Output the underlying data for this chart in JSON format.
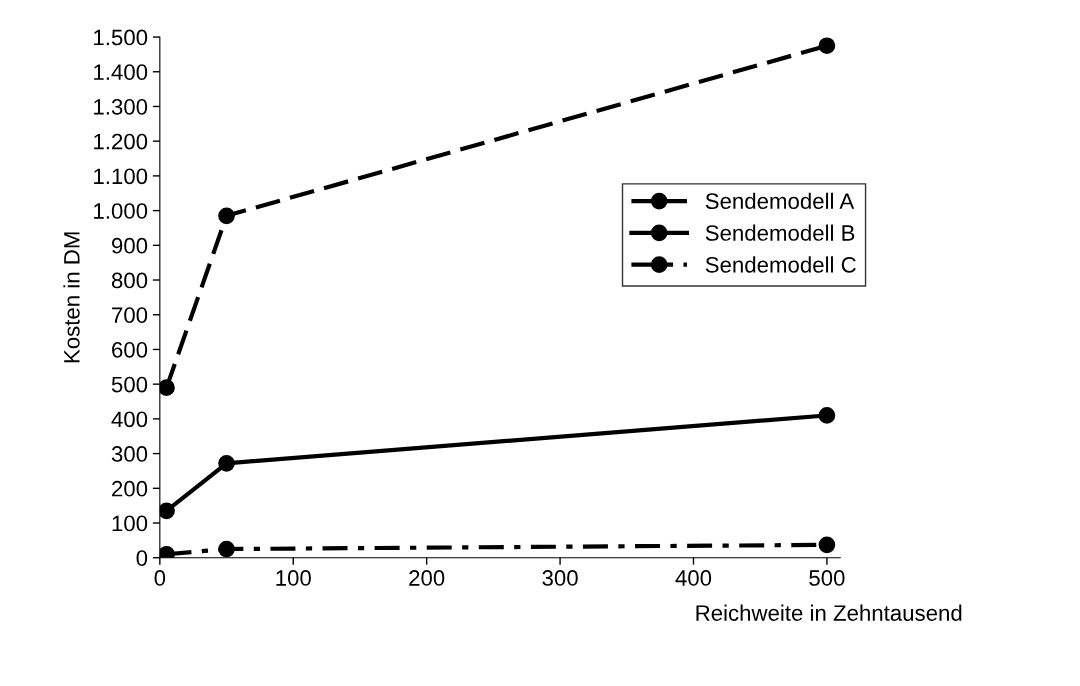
{
  "chart_data": {
    "type": "line",
    "xlabel": "Reichweite in Zehntausend",
    "ylabel": "Kosten in DM",
    "x": [
      5,
      50,
      500
    ],
    "series": [
      {
        "name": "Sendemodell A",
        "color": "#000000",
        "line_style": "dashed",
        "values": [
          490,
          985,
          1475
        ]
      },
      {
        "name": "Sendemodell B",
        "color": "#000000",
        "line_style": "solid",
        "values": [
          135,
          272,
          410
        ]
      },
      {
        "name": "Sendemodell C",
        "color": "#000000",
        "line_style": "dashdot",
        "values": [
          10,
          25,
          37
        ]
      }
    ],
    "marker": "circle",
    "legend": "right",
    "grid": false,
    "xlim": [
      0,
      510
    ],
    "xticks": [
      0,
      100,
      200,
      300,
      400,
      500
    ],
    "ylim": [
      0,
      1500
    ],
    "yticks": [
      0,
      100,
      200,
      300,
      400,
      500,
      600,
      700,
      800,
      900,
      {
        "value": 1000,
        "label": "1.000"
      },
      {
        "value": 1100,
        "label": "1.100"
      },
      {
        "value": 1200,
        "label": "1.200"
      },
      {
        "value": 1300,
        "label": "1.300"
      },
      {
        "value": 1400,
        "label": "1.400"
      },
      {
        "value": 1500,
        "label": "1.500"
      }
    ]
  }
}
